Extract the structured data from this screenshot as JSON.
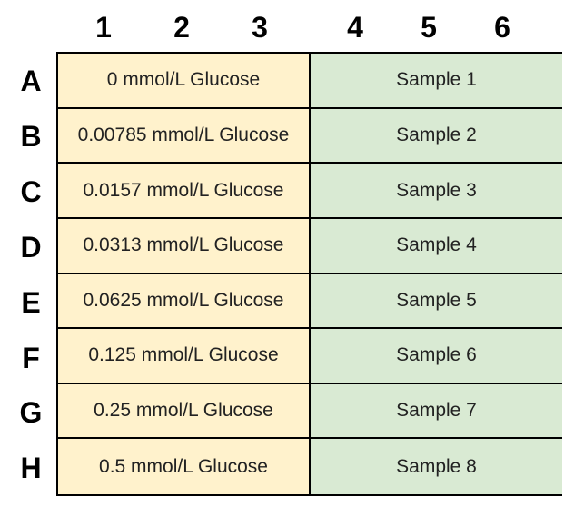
{
  "columns": [
    "1",
    "2",
    "3",
    "4",
    "5",
    "6"
  ],
  "rows": [
    {
      "label": "A",
      "standard": "0 mmol/L Glucose",
      "sample": "Sample 1"
    },
    {
      "label": "B",
      "standard": "0.00785 mmol/L Glucose",
      "sample": "Sample 2"
    },
    {
      "label": "C",
      "standard": "0.0157 mmol/L Glucose",
      "sample": "Sample 3"
    },
    {
      "label": "D",
      "standard": "0.0313 mmol/L Glucose",
      "sample": "Sample 4"
    },
    {
      "label": "E",
      "standard": "0.0625 mmol/L Glucose",
      "sample": "Sample 5"
    },
    {
      "label": "F",
      "standard": "0.125 mmol/L Glucose",
      "sample": "Sample 6"
    },
    {
      "label": "G",
      "standard": "0.25 mmol/L Glucose",
      "sample": "Sample 7"
    },
    {
      "label": "H",
      "standard": "0.5 mmol/L Glucose",
      "sample": "Sample 8"
    }
  ],
  "colors": {
    "standard_fill": "#fff2cc",
    "sample_fill": "#d9ead3",
    "border": "#000000"
  }
}
